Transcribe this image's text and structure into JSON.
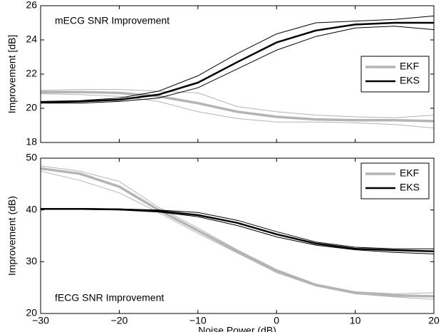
{
  "chart_data": [
    {
      "type": "line",
      "annotation": "mECG SNR Improvement",
      "ylabel": "Improvement [dB]",
      "x": [
        -30,
        -25,
        -20,
        -15,
        -10,
        -5,
        0,
        5,
        10,
        15,
        20
      ],
      "xlim": [
        -30,
        20
      ],
      "xticks": [
        -30,
        -20,
        -10,
        0,
        10,
        20
      ],
      "show_xtick_labels": false,
      "ylim": [
        18,
        26
      ],
      "yticks": [
        18,
        20,
        22,
        24,
        26
      ],
      "legend_loc": "center right",
      "series": [
        {
          "color": "#b4b4b4",
          "width": 1,
          "values": [
            21.05,
            21.1,
            21.1,
            21.0,
            20.9,
            20.1,
            19.8,
            19.6,
            19.5,
            19.45,
            19.6
          ]
        },
        {
          "color": "#b4b4b4",
          "width": 1,
          "values": [
            20.85,
            20.8,
            20.7,
            20.4,
            19.8,
            19.4,
            19.2,
            19.2,
            19.15,
            19.05,
            18.85
          ]
        },
        {
          "name": "EKF",
          "color": "#b4b4b4",
          "width": 3.5,
          "values": [
            20.95,
            20.95,
            20.9,
            20.7,
            20.3,
            19.8,
            19.5,
            19.35,
            19.3,
            19.3,
            19.25
          ]
        },
        {
          "color": "#000000",
          "width": 1,
          "values": [
            20.4,
            20.45,
            20.6,
            21.0,
            21.9,
            23.2,
            24.35,
            25.0,
            25.1,
            25.2,
            25.4
          ]
        },
        {
          "color": "#000000",
          "width": 1,
          "values": [
            20.3,
            20.3,
            20.4,
            20.6,
            21.2,
            22.3,
            23.4,
            24.2,
            24.7,
            24.8,
            24.6
          ]
        },
        {
          "name": "EKS",
          "color": "#000000",
          "width": 2.5,
          "values": [
            20.35,
            20.4,
            20.5,
            20.8,
            21.5,
            22.7,
            23.85,
            24.55,
            24.9,
            25.0,
            25.0
          ]
        }
      ]
    },
    {
      "type": "line",
      "annotation": "fECG SNR Improvement",
      "ylabel": "Improvement (dB)",
      "xlabel": "Noise Power (dB)",
      "x": [
        -30,
        -25,
        -20,
        -15,
        -10,
        -5,
        0,
        5,
        10,
        15,
        20
      ],
      "xlim": [
        -30,
        20
      ],
      "xticks": [
        {
          "value": -30,
          "label": "−30"
        },
        {
          "value": -20,
          "label": "−20"
        },
        {
          "value": -10,
          "label": "−10"
        },
        0,
        10,
        20
      ],
      "show_xtick_labels": true,
      "ylim": [
        20,
        50
      ],
      "yticks": [
        20,
        30,
        40,
        50
      ],
      "legend_loc": "upper right",
      "series": [
        {
          "color": "#b4b4b4",
          "width": 1,
          "values": [
            48.5,
            47.5,
            45.5,
            40.5,
            36.5,
            32.3,
            28.5,
            25.7,
            24.2,
            23.8,
            24.0
          ]
        },
        {
          "color": "#b4b4b4",
          "width": 1,
          "values": [
            47.5,
            45.7,
            43.3,
            39.5,
            35.5,
            31.7,
            27.9,
            25.3,
            23.8,
            23.2,
            22.7
          ]
        },
        {
          "name": "EKF",
          "color": "#b4b4b4",
          "width": 3.5,
          "values": [
            48.0,
            47.0,
            44.5,
            40.0,
            36.0,
            32.0,
            28.2,
            25.5,
            24.0,
            23.5,
            23.3
          ]
        },
        {
          "color": "#000000",
          "width": 1,
          "values": [
            40.3,
            40.3,
            40.2,
            40.0,
            39.5,
            38.0,
            35.8,
            33.8,
            32.8,
            32.5,
            32.5
          ]
        },
        {
          "color": "#000000",
          "width": 1,
          "values": [
            40.1,
            40.1,
            40.0,
            39.6,
            38.7,
            37.0,
            34.8,
            33.2,
            32.3,
            31.8,
            31.5
          ]
        },
        {
          "name": "EKS",
          "color": "#000000",
          "width": 2.5,
          "values": [
            40.2,
            40.2,
            40.1,
            39.8,
            39.0,
            37.5,
            35.3,
            33.5,
            32.5,
            32.2,
            32.0
          ]
        }
      ]
    }
  ]
}
